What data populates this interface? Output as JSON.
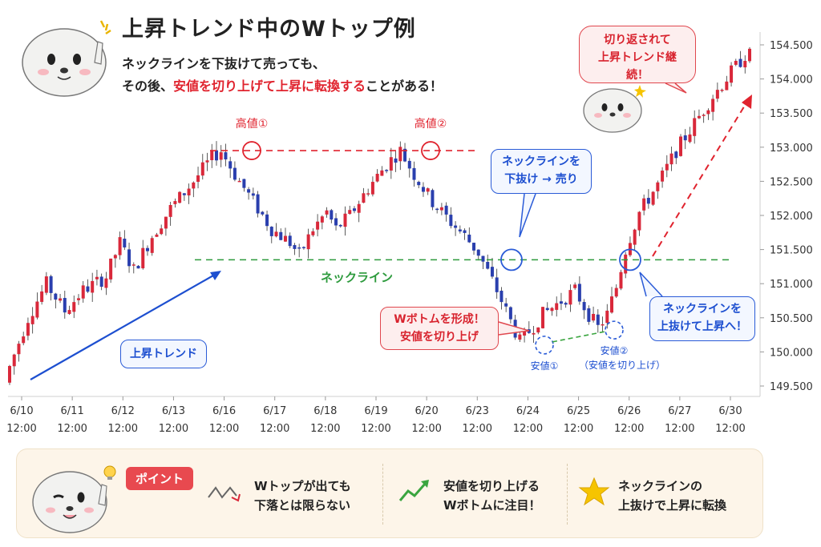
{
  "header": {
    "title": "上昇トレンド中のWトップ例",
    "line1": "ネックラインを下抜けて売っても、",
    "line2_pre": "その後、",
    "line2_red": "安値を切り上げて上昇に転換する",
    "line2_post": "ことがある！"
  },
  "callouts": {
    "rebound": [
      "切り返されて",
      "上昇トレンド継続！"
    ],
    "break_down": [
      "ネックラインを",
      "下抜け → 売り"
    ],
    "w_bottom": [
      "Wボトムを形成！",
      "安値を切り上げ"
    ],
    "break_up": [
      "ネックラインを",
      "上抜けて上昇へ！"
    ],
    "uptrend": "上昇トレンド"
  },
  "chart_data": {
    "type": "candlestick",
    "title": "上昇トレンド中のWトップ例",
    "y_ticks": [
      "149.500",
      "150.000",
      "150.500",
      "151.000",
      "151.500",
      "152.000",
      "152.500",
      "153.000",
      "153.500",
      "154.000",
      "154.500"
    ],
    "ylim": [
      149.5,
      154.6
    ],
    "x_ticks": [
      {
        "date": "6/10",
        "time": "12:00"
      },
      {
        "date": "6/11",
        "time": "12:00"
      },
      {
        "date": "6/12",
        "time": "12:00"
      },
      {
        "date": "6/13",
        "time": "12:00"
      },
      {
        "date": "6/16",
        "time": "12:00"
      },
      {
        "date": "6/17",
        "time": "12:00"
      },
      {
        "date": "6/18",
        "time": "12:00"
      },
      {
        "date": "6/19",
        "time": "12:00"
      },
      {
        "date": "6/20",
        "time": "12:00"
      },
      {
        "date": "6/23",
        "time": "12:00"
      },
      {
        "date": "6/24",
        "time": "12:00"
      },
      {
        "date": "6/25",
        "time": "12:00"
      },
      {
        "date": "6/26",
        "time": "12:00"
      },
      {
        "date": "6/27",
        "time": "12:00"
      },
      {
        "date": "6/30",
        "time": "12:00"
      }
    ],
    "neckline": {
      "label": "ネックライン",
      "value": 151.35
    },
    "resistance": {
      "value": 152.95
    },
    "peaks": [
      {
        "label": "高値①",
        "date": "6/16",
        "value": 152.95
      },
      {
        "label": "高値②",
        "date": "6/20",
        "value": 152.95
      }
    ],
    "troughs": [
      {
        "label": "安値①",
        "date": "6/24",
        "value": 150.1
      },
      {
        "label": "安値②",
        "sublabel": "（安値を切り上げ）",
        "date": "6/25",
        "value": 150.32
      }
    ],
    "up_color": "#d9283a",
    "down_color": "#2a3fae",
    "path": [
      [
        0,
        149.6
      ],
      [
        5,
        150.5
      ],
      [
        9,
        151.0
      ],
      [
        13,
        150.6
      ],
      [
        17,
        150.9
      ],
      [
        22,
        151.1
      ],
      [
        25,
        151.6
      ],
      [
        28,
        151.2
      ],
      [
        32,
        151.7
      ],
      [
        36,
        152.1
      ],
      [
        41,
        152.5
      ],
      [
        45,
        152.85
      ],
      [
        47,
        152.95
      ],
      [
        50,
        152.6
      ],
      [
        54,
        152.2
      ],
      [
        58,
        151.8
      ],
      [
        62,
        151.6
      ],
      [
        64,
        151.42
      ],
      [
        67,
        151.8
      ],
      [
        70,
        152.05
      ],
      [
        72,
        151.8
      ],
      [
        75,
        152.0
      ],
      [
        79,
        152.4
      ],
      [
        83,
        152.75
      ],
      [
        86,
        152.95
      ],
      [
        89,
        152.6
      ],
      [
        93,
        152.2
      ],
      [
        97,
        151.9
      ],
      [
        100,
        151.7
      ],
      [
        103,
        151.45
      ],
      [
        107,
        150.9
      ],
      [
        110,
        150.45
      ],
      [
        112,
        150.15
      ],
      [
        114,
        150.3
      ],
      [
        117,
        150.55
      ],
      [
        121,
        150.75
      ],
      [
        124,
        150.9
      ],
      [
        127,
        150.55
      ],
      [
        129,
        150.35
      ],
      [
        131,
        150.55
      ],
      [
        133,
        150.95
      ],
      [
        135,
        151.5
      ],
      [
        138,
        152.05
      ],
      [
        142,
        152.45
      ],
      [
        146,
        152.95
      ],
      [
        150,
        153.35
      ],
      [
        154,
        153.75
      ],
      [
        158,
        154.1
      ],
      [
        161,
        154.35
      ]
    ]
  },
  "bottom": {
    "badge": "ポイント",
    "tip1": [
      "Wトップが出ても",
      "下落とは限らない"
    ],
    "tip2": [
      "安値を切り上げる",
      "Wボトムに注目！"
    ],
    "tip3": [
      "ネックラインの",
      "上抜けで上昇に転換"
    ]
  },
  "colors": {
    "accent_red": "#e0232e",
    "accent_blue": "#1d4fd0",
    "neckline_green": "#2c9a3c",
    "panel_bg": "#fdf5e9"
  }
}
